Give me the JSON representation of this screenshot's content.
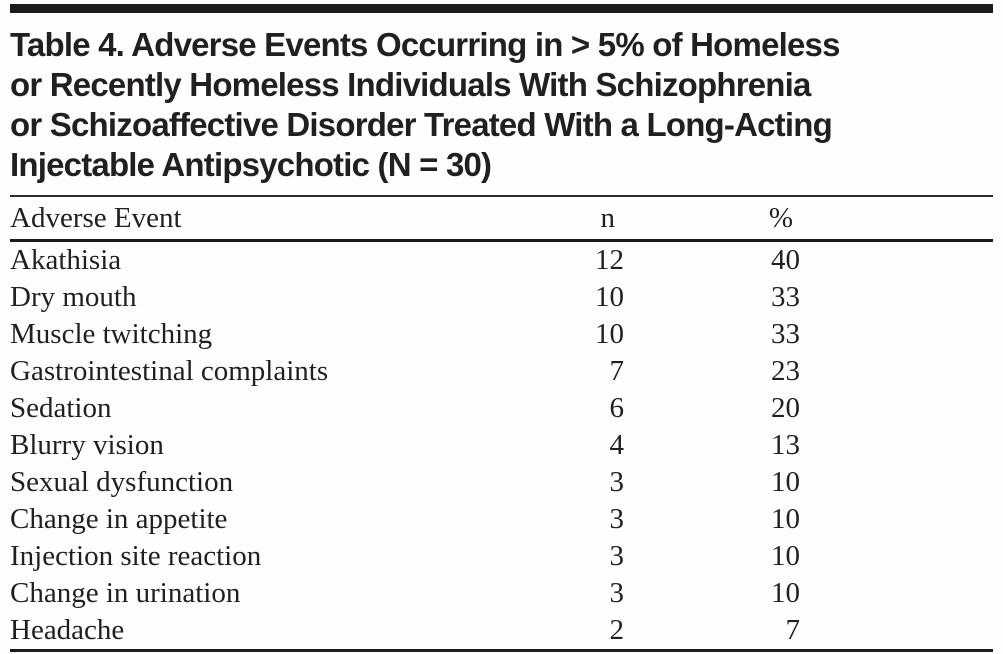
{
  "table": {
    "title_lines": [
      "Table 4. Adverse Events Occurring in > 5% of Homeless",
      "or Recently Homeless Individuals With Schizophrenia",
      "or Schizoaffective Disorder Treated With a Long-Acting",
      "Injectable Antipsychotic (N = 30)"
    ],
    "columns": [
      "Adverse Event",
      "n",
      "%"
    ],
    "rows": [
      {
        "event": "Akathisia",
        "n": "12",
        "pct": "40"
      },
      {
        "event": "Dry mouth",
        "n": "10",
        "pct": "33"
      },
      {
        "event": "Muscle twitching",
        "n": "10",
        "pct": "33"
      },
      {
        "event": "Gastrointestinal complaints",
        "n": "7",
        "pct": "23"
      },
      {
        "event": "Sedation",
        "n": "6",
        "pct": "20"
      },
      {
        "event": "Blurry vision",
        "n": "4",
        "pct": "13"
      },
      {
        "event": "Sexual dysfunction",
        "n": "3",
        "pct": "10"
      },
      {
        "event": "Change in appetite",
        "n": "3",
        "pct": "10"
      },
      {
        "event": "Injection site reaction",
        "n": "3",
        "pct": "10"
      },
      {
        "event": "Change in urination",
        "n": "3",
        "pct": "10"
      },
      {
        "event": "Headache",
        "n": "2",
        "pct": "7"
      }
    ],
    "colors": {
      "text": "#231f20",
      "rule": "#1c1a1b",
      "background": "#fefefe"
    }
  }
}
